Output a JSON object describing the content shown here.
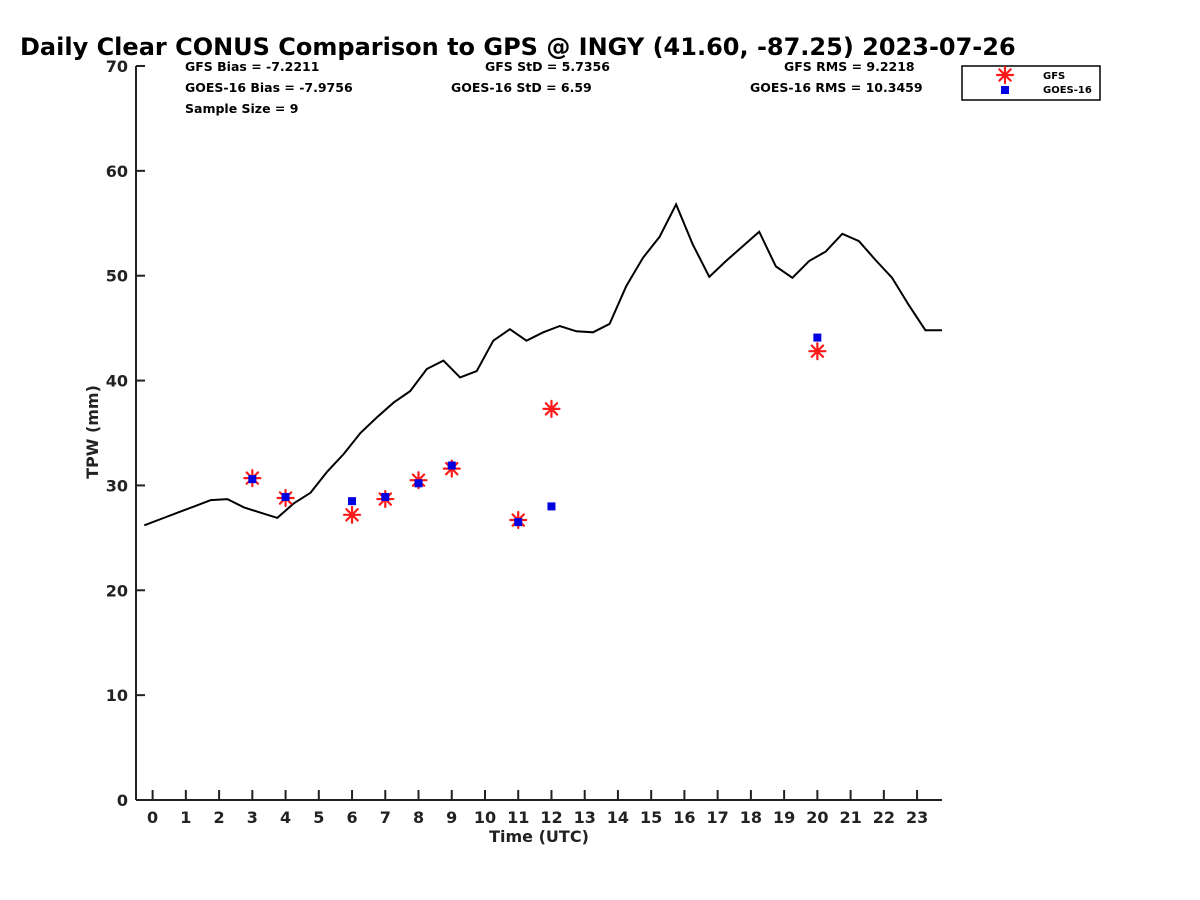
{
  "chart_data": {
    "type": "line",
    "title": "Daily Clear CONUS Comparison to GPS @ INGY (41.60, -87.25) 2023-07-26",
    "xlabel": "Time (UTC)",
    "ylabel": "TPW (mm)",
    "xlim": [
      -0.5,
      23.75
    ],
    "ylim": [
      0,
      70
    ],
    "x_ticks": [
      0,
      1,
      2,
      3,
      4,
      5,
      6,
      7,
      8,
      9,
      10,
      11,
      12,
      13,
      14,
      15,
      16,
      17,
      18,
      19,
      20,
      21,
      22,
      23
    ],
    "y_ticks": [
      0,
      10,
      20,
      30,
      40,
      50,
      60,
      70
    ],
    "grid": false,
    "legend_position": "top-right, outside plot",
    "stats": {
      "gfs_bias": "GFS Bias = -7.2211",
      "goes_bias": "GOES-16 Bias = -7.9756",
      "sample_size": "Sample Size = 9",
      "gfs_std": "GFS StD = 5.7356",
      "goes_std": "GOES-16 StD = 6.59",
      "gfs_rms": "GFS RMS = 9.2218",
      "goes_rms": "GOES-16 RMS = 10.3459"
    },
    "series": [
      {
        "key": "gps",
        "color": "#000000",
        "marker": "line",
        "x": [
          -0.25,
          0.25,
          0.75,
          1.25,
          1.75,
          2.25,
          2.75,
          3.25,
          3.75,
          4.25,
          4.75,
          5.25,
          5.75,
          6.25,
          6.75,
          7.25,
          7.75,
          8.25,
          8.75,
          9.25,
          9.75,
          10.25,
          10.75,
          11.25,
          11.75,
          12.25,
          12.75,
          13.25,
          13.75,
          14.25,
          14.75,
          15.25,
          15.75,
          16.25,
          16.75,
          17.25,
          17.75,
          18.25,
          18.75,
          19.25,
          19.75,
          20.25,
          20.75,
          21.25,
          21.75,
          22.25,
          22.75,
          23.25,
          23.75
        ],
        "values": [
          26.2,
          26.8,
          27.4,
          28.0,
          28.6,
          28.7,
          27.9,
          27.4,
          26.9,
          28.3,
          29.3,
          31.3,
          33.0,
          35.0,
          36.5,
          37.9,
          39.0,
          41.1,
          41.9,
          40.3,
          40.9,
          43.8,
          44.9,
          43.8,
          44.6,
          45.2,
          44.7,
          44.6,
          45.4,
          49.0,
          51.7,
          53.7,
          56.8,
          53.0,
          49.9,
          51.4,
          52.8,
          54.2,
          50.9,
          49.8,
          51.4,
          52.3,
          54.0,
          53.3,
          51.5,
          49.8,
          47.2,
          44.8,
          44.8
        ]
      },
      {
        "key": "gfs",
        "name": "GFS",
        "color": "#ff1a1a",
        "marker": "asterisk",
        "x": [
          3,
          4,
          6,
          7,
          8,
          9,
          11,
          12,
          20
        ],
        "values": [
          30.7,
          28.8,
          27.2,
          28.7,
          30.5,
          31.6,
          26.7,
          37.3,
          42.8
        ]
      },
      {
        "key": "goes",
        "name": "GOES-16",
        "color": "#0000e0",
        "marker": "square",
        "x": [
          3,
          4,
          6,
          7,
          8,
          9,
          11,
          12,
          20
        ],
        "values": [
          30.6,
          28.9,
          28.5,
          28.9,
          30.2,
          31.9,
          26.5,
          28.0,
          44.1
        ]
      }
    ]
  }
}
